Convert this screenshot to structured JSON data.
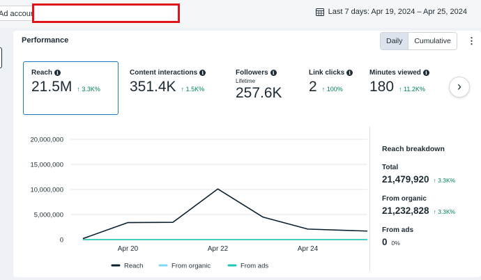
{
  "topbar": {
    "ad_account_label": "Ad accour",
    "date_range": "Last 7 days: Apr 19, 2024 – Apr 25, 2024"
  },
  "performance": {
    "title": "Performance",
    "toggle": {
      "daily": "Daily",
      "cumulative": "Cumulative"
    },
    "more": "⋮"
  },
  "metrics": [
    {
      "name": "Reach",
      "sub": "",
      "value": "21.5M",
      "change": "↑ 3.3K%"
    },
    {
      "name": "Content interactions",
      "sub": "",
      "value": "351.4K",
      "change": "↑ 1.5K%"
    },
    {
      "name": "Followers",
      "sub": "Lifetime",
      "value": "257.6K",
      "change": ""
    },
    {
      "name": "Link clicks",
      "sub": "",
      "value": "2",
      "change": "↑ 100%"
    },
    {
      "name": "Minutes viewed",
      "sub": "",
      "value": "180",
      "change": "↑ 11.2K%"
    }
  ],
  "chart_data": {
    "type": "line",
    "x": [
      "Apr 19",
      "Apr 20",
      "Apr 21",
      "Apr 22",
      "Apr 23",
      "Apr 24",
      "Apr 25"
    ],
    "x_tick_labels": [
      "Apr 20",
      "Apr 22",
      "Apr 24"
    ],
    "y_tick_labels": [
      "0",
      "5,000,000",
      "10,000,000",
      "15,000,000",
      "20,000,000"
    ],
    "ylim": [
      0,
      20000000
    ],
    "grid": true,
    "legend_position": "bottom",
    "series": [
      {
        "name": "Reach",
        "color": "#0a1f2e",
        "values": [
          200000,
          3400000,
          3450000,
          10100000,
          4500000,
          2100000,
          1700000
        ]
      },
      {
        "name": "From organic",
        "color": "#7fd6f5",
        "values": [
          0,
          0,
          0,
          0,
          0,
          0,
          0
        ]
      },
      {
        "name": "From ads",
        "color": "#1fc6b8",
        "values": [
          0,
          0,
          0,
          0,
          0,
          0,
          0
        ]
      }
    ]
  },
  "breakdown": {
    "title": "Reach breakdown",
    "total_label": "Total",
    "total_value": "21,479,920",
    "total_change": "↑ 3.3K%",
    "organic_label": "From organic",
    "organic_value": "21,232,828",
    "organic_change": "↑ 3.3K%",
    "ads_label": "From ads",
    "ads_value": "0",
    "ads_change": "0%"
  },
  "colors": {
    "accent": "#1a77c0",
    "positive": "#00825a",
    "redaction": "#e0151b"
  }
}
